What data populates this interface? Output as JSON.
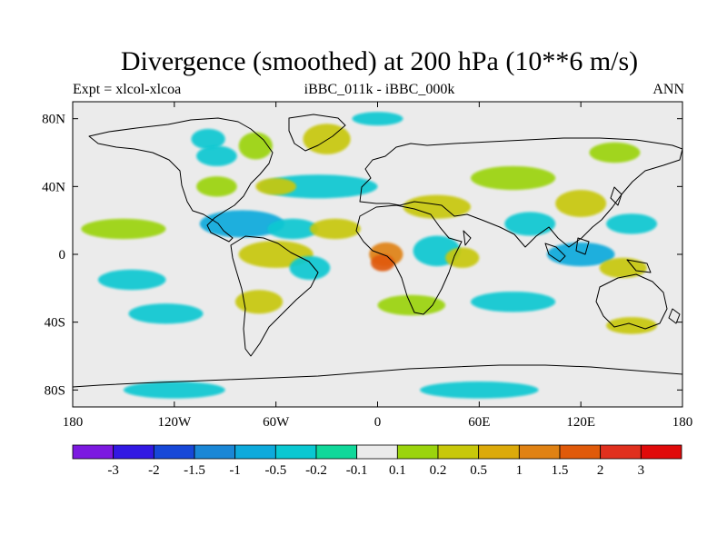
{
  "header": {
    "title": "Divergence (smoothed) at 200 hPa (10**6 m/s)",
    "left_label": "Expt = xlcol-xlcoa",
    "center_label": "iBBC_011k - iBBC_000k",
    "right_label": "ANN"
  },
  "chart_data": {
    "type": "heatmap",
    "title": "Divergence (smoothed) at 200 hPa (10**6 m/s)",
    "xlabel": "",
    "ylabel": "",
    "xlim": [
      -180,
      180
    ],
    "ylim": [
      -90,
      90
    ],
    "x_ticks": [
      {
        "value": -180,
        "label": "180"
      },
      {
        "value": -120,
        "label": "120W"
      },
      {
        "value": -60,
        "label": "60W"
      },
      {
        "value": 0,
        "label": "0"
      },
      {
        "value": 60,
        "label": "60E"
      },
      {
        "value": 120,
        "label": "120E"
      },
      {
        "value": 180,
        "label": "180"
      }
    ],
    "y_ticks": [
      {
        "value": 80,
        "label": "80N"
      },
      {
        "value": 40,
        "label": "40N"
      },
      {
        "value": 0,
        "label": "0"
      },
      {
        "value": -40,
        "label": "40S"
      },
      {
        "value": -80,
        "label": "80S"
      }
    ],
    "colorbar": {
      "colors": [
        "#7c19e0",
        "#3219e3",
        "#1748d8",
        "#1a87d6",
        "#0eaadc",
        "#0ac8d2",
        "#10d89a",
        "#ebebeb",
        "#9bd40d",
        "#c8c80a",
        "#dcaa0a",
        "#e08214",
        "#e05a0a",
        "#e0301e",
        "#e00a0a"
      ],
      "labels": [
        "-3",
        "-2",
        "-1.5",
        "-1",
        "-0.5",
        "-0.2",
        "-0.1",
        "0.1",
        "0.2",
        "0.5",
        "1",
        "1.5",
        "2",
        "3"
      ]
    },
    "anomalies": [
      {
        "lon": -100,
        "lat": 68,
        "rx": 10,
        "ry": 6,
        "value": -0.3
      },
      {
        "lon": -95,
        "lat": 58,
        "rx": 12,
        "ry": 6,
        "value": -0.3
      },
      {
        "lon": -30,
        "lat": 68,
        "rx": 14,
        "ry": 9,
        "value": 0.3
      },
      {
        "lon": -72,
        "lat": 64,
        "rx": 10,
        "ry": 8,
        "value": 0.2
      },
      {
        "lon": -35,
        "lat": 40,
        "rx": 35,
        "ry": 7,
        "value": -0.3
      },
      {
        "lon": -60,
        "lat": 40,
        "rx": 12,
        "ry": 5,
        "value": 0.3
      },
      {
        "lon": -95,
        "lat": 40,
        "rx": 12,
        "ry": 6,
        "value": 0.2
      },
      {
        "lon": -80,
        "lat": 18,
        "rx": 25,
        "ry": 8,
        "value": -0.6
      },
      {
        "lon": -50,
        "lat": 15,
        "rx": 15,
        "ry": 6,
        "value": -0.4
      },
      {
        "lon": -25,
        "lat": 15,
        "rx": 15,
        "ry": 6,
        "value": 0.3
      },
      {
        "lon": -60,
        "lat": 0,
        "rx": 22,
        "ry": 8,
        "value": 0.5
      },
      {
        "lon": -40,
        "lat": -8,
        "rx": 12,
        "ry": 7,
        "value": -0.3
      },
      {
        "lon": 5,
        "lat": 0,
        "rx": 10,
        "ry": 7,
        "value": 1.2
      },
      {
        "lon": 3,
        "lat": -5,
        "rx": 7,
        "ry": 5,
        "value": 1.6
      },
      {
        "lon": 35,
        "lat": 2,
        "rx": 14,
        "ry": 9,
        "value": -0.4
      },
      {
        "lon": 50,
        "lat": -2,
        "rx": 10,
        "ry": 6,
        "value": 0.3
      },
      {
        "lon": 35,
        "lat": 28,
        "rx": 20,
        "ry": 7,
        "value": 0.3
      },
      {
        "lon": 80,
        "lat": 45,
        "rx": 25,
        "ry": 7,
        "value": 0.2
      },
      {
        "lon": 90,
        "lat": 18,
        "rx": 15,
        "ry": 7,
        "value": -0.3
      },
      {
        "lon": 120,
        "lat": 30,
        "rx": 15,
        "ry": 8,
        "value": 0.4
      },
      {
        "lon": 150,
        "lat": 18,
        "rx": 15,
        "ry": 6,
        "value": -0.3
      },
      {
        "lon": 120,
        "lat": 0,
        "rx": 20,
        "ry": 7,
        "value": -0.5
      },
      {
        "lon": 145,
        "lat": -8,
        "rx": 14,
        "ry": 6,
        "value": 0.3
      },
      {
        "lon": -150,
        "lat": 15,
        "rx": 25,
        "ry": 6,
        "value": 0.2
      },
      {
        "lon": -145,
        "lat": -15,
        "rx": 20,
        "ry": 6,
        "value": -0.2
      },
      {
        "lon": -125,
        "lat": -35,
        "rx": 22,
        "ry": 6,
        "value": -0.3
      },
      {
        "lon": -70,
        "lat": -28,
        "rx": 14,
        "ry": 7,
        "value": 0.3
      },
      {
        "lon": 20,
        "lat": -30,
        "rx": 20,
        "ry": 6,
        "value": 0.2
      },
      {
        "lon": 80,
        "lat": -28,
        "rx": 25,
        "ry": 6,
        "value": -0.3
      },
      {
        "lon": 150,
        "lat": -42,
        "rx": 15,
        "ry": 5,
        "value": 0.3
      },
      {
        "lon": -120,
        "lat": -80,
        "rx": 30,
        "ry": 5,
        "value": -0.3
      },
      {
        "lon": 60,
        "lat": -80,
        "rx": 35,
        "ry": 5,
        "value": -0.2
      },
      {
        "lon": 0,
        "lat": 80,
        "rx": 15,
        "ry": 4,
        "value": -0.2
      },
      {
        "lon": 140,
        "lat": 60,
        "rx": 15,
        "ry": 6,
        "value": 0.2
      }
    ]
  }
}
